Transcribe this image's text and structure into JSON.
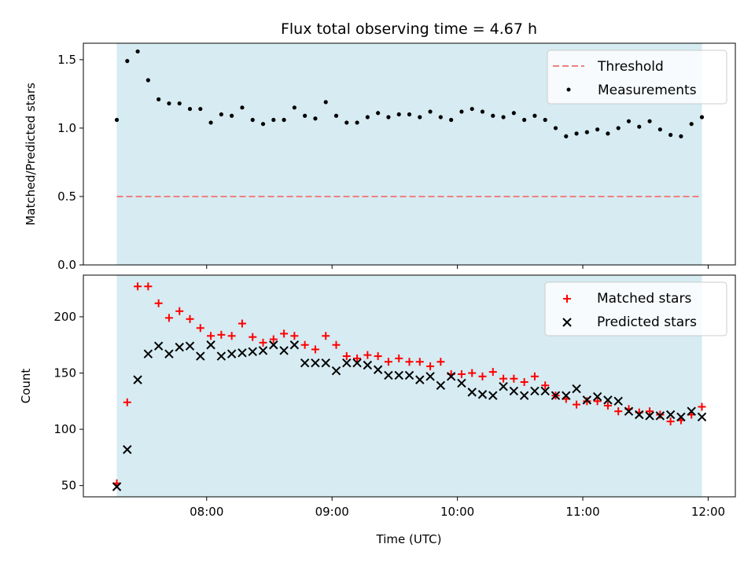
{
  "chart_data": [
    {
      "type": "scatter",
      "title": "Flux total observing time = 4.67 h",
      "xlabel": "",
      "ylabel": "Matched/Predicted stars",
      "ylim": [
        0,
        1.62
      ],
      "yticks": [
        0.0,
        0.5,
        1.0,
        1.5
      ],
      "ytick_labels": [
        "0.0",
        "0.5",
        "1.0",
        "1.5"
      ],
      "shaded_span": {
        "start": "07:17",
        "end": "11:57",
        "color": "#add8e6"
      },
      "threshold": {
        "name": "Threshold",
        "value": 0.5,
        "color": "#f08080"
      },
      "legend": {
        "placement": "top-right",
        "entries": [
          "Threshold",
          "Measurements"
        ]
      },
      "series": [
        {
          "name": "Measurements",
          "color": "#000000",
          "x": [
            "07:17",
            "07:22",
            "07:27",
            "07:32",
            "07:37",
            "07:42",
            "07:47",
            "07:52",
            "07:57",
            "08:02",
            "08:07",
            "08:12",
            "08:17",
            "08:22",
            "08:27",
            "08:32",
            "08:37",
            "08:42",
            "08:47",
            "08:52",
            "08:57",
            "09:02",
            "09:07",
            "09:12",
            "09:17",
            "09:22",
            "09:27",
            "09:32",
            "09:37",
            "09:42",
            "09:47",
            "09:52",
            "09:57",
            "10:02",
            "10:07",
            "10:12",
            "10:17",
            "10:22",
            "10:27",
            "10:32",
            "10:37",
            "10:42",
            "10:47",
            "10:52",
            "10:57",
            "11:02",
            "11:07",
            "11:12",
            "11:17",
            "11:22",
            "11:27",
            "11:32",
            "11:37",
            "11:42",
            "11:47",
            "11:52",
            "11:57"
          ],
          "values": [
            1.06,
            1.49,
            1.56,
            1.35,
            1.21,
            1.18,
            1.18,
            1.14,
            1.14,
            1.04,
            1.1,
            1.09,
            1.15,
            1.06,
            1.03,
            1.06,
            1.06,
            1.15,
            1.09,
            1.07,
            1.19,
            1.09,
            1.04,
            1.04,
            1.08,
            1.11,
            1.08,
            1.1,
            1.1,
            1.08,
            1.12,
            1.08,
            1.06,
            1.12,
            1.14,
            1.12,
            1.09,
            1.08,
            1.11,
            1.06,
            1.09,
            1.06,
            1.0,
            0.94,
            0.96,
            0.97,
            0.99,
            0.96,
            1.0,
            1.05,
            1.01,
            1.05,
            0.99,
            0.95,
            0.94,
            1.03,
            1.08
          ]
        }
      ]
    },
    {
      "type": "scatter",
      "title": "",
      "xlabel": "Time (UTC)",
      "ylabel": "Count",
      "ylim": [
        40,
        237
      ],
      "yticks": [
        50,
        100,
        150,
        200
      ],
      "ytick_labels": [
        "50",
        "100",
        "150",
        "200"
      ],
      "xlim": [
        "07:01",
        "12:13"
      ],
      "xticks": [
        "08:00",
        "09:00",
        "10:00",
        "11:00",
        "12:00"
      ],
      "shaded_span": {
        "start": "07:17",
        "end": "11:57",
        "color": "#add8e6"
      },
      "legend": {
        "placement": "top-right",
        "entries": [
          "Matched stars",
          "Predicted stars"
        ]
      },
      "series": [
        {
          "name": "Matched stars",
          "marker": "plus",
          "color": "#ff0000",
          "x": [
            "07:17",
            "07:22",
            "07:27",
            "07:32",
            "07:37",
            "07:42",
            "07:47",
            "07:52",
            "07:57",
            "08:02",
            "08:07",
            "08:12",
            "08:17",
            "08:22",
            "08:27",
            "08:32",
            "08:37",
            "08:42",
            "08:47",
            "08:52",
            "08:57",
            "09:02",
            "09:07",
            "09:12",
            "09:17",
            "09:22",
            "09:27",
            "09:32",
            "09:37",
            "09:42",
            "09:47",
            "09:52",
            "09:57",
            "10:02",
            "10:07",
            "10:12",
            "10:17",
            "10:22",
            "10:27",
            "10:32",
            "10:37",
            "10:42",
            "10:47",
            "10:52",
            "10:57",
            "11:02",
            "11:07",
            "11:12",
            "11:17",
            "11:22",
            "11:27",
            "11:32",
            "11:37",
            "11:42",
            "11:47",
            "11:52",
            "11:57"
          ],
          "values": [
            52,
            124,
            227,
            227,
            212,
            199,
            205,
            198,
            190,
            183,
            184,
            183,
            194,
            182,
            177,
            180,
            185,
            183,
            175,
            171,
            183,
            175,
            165,
            163,
            166,
            165,
            160,
            163,
            160,
            160,
            156,
            160,
            149,
            149,
            150,
            147,
            151,
            145,
            145,
            142,
            147,
            139,
            130,
            127,
            122,
            125,
            125,
            121,
            116,
            118,
            115,
            116,
            113,
            107,
            108,
            113,
            120
          ]
        },
        {
          "name": "Predicted stars",
          "marker": "x",
          "color": "#000000",
          "x": [
            "07:17",
            "07:22",
            "07:27",
            "07:32",
            "07:37",
            "07:42",
            "07:47",
            "07:52",
            "07:57",
            "08:02",
            "08:07",
            "08:12",
            "08:17",
            "08:22",
            "08:27",
            "08:32",
            "08:37",
            "08:42",
            "08:47",
            "08:52",
            "08:57",
            "09:02",
            "09:07",
            "09:12",
            "09:17",
            "09:22",
            "09:27",
            "09:32",
            "09:37",
            "09:42",
            "09:47",
            "09:52",
            "09:57",
            "10:02",
            "10:07",
            "10:12",
            "10:17",
            "10:22",
            "10:27",
            "10:32",
            "10:37",
            "10:42",
            "10:47",
            "10:52",
            "10:57",
            "11:02",
            "11:07",
            "11:12",
            "11:17",
            "11:22",
            "11:27",
            "11:32",
            "11:37",
            "11:42",
            "11:47",
            "11:52",
            "11:57"
          ],
          "values": [
            49,
            82,
            144,
            167,
            174,
            167,
            173,
            174,
            165,
            175,
            165,
            167,
            168,
            169,
            170,
            175,
            170,
            175,
            159,
            159,
            159,
            152,
            159,
            159,
            157,
            153,
            148,
            148,
            148,
            144,
            147,
            139,
            147,
            141,
            133,
            131,
            130,
            138,
            134,
            130,
            134,
            134,
            130,
            130,
            136,
            126,
            129,
            126,
            125,
            116,
            113,
            112,
            112,
            113,
            111,
            116,
            111
          ]
        }
      ]
    }
  ]
}
